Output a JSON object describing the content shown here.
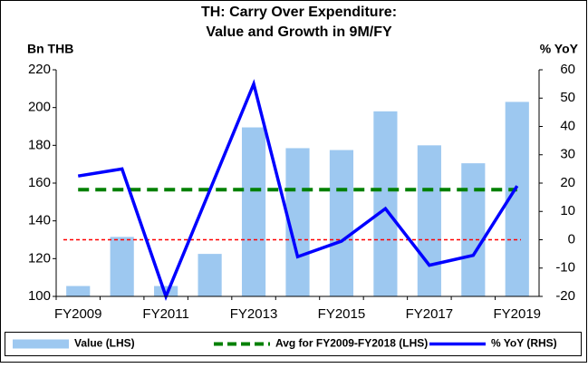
{
  "chart_data": {
    "type": "combo",
    "title": [
      "TH: Carry Over Expenditure:",
      "Value and Growth in 9M/FY"
    ],
    "y_label": "Bn THB",
    "y2_label": "% YoY",
    "categories": [
      "FY2009",
      null,
      "FY2011",
      null,
      "FY2013",
      null,
      "FY2015",
      null,
      "FY2017",
      null,
      "FY2019"
    ],
    "series": [
      {
        "name": "Value (LHS)",
        "type": "bar",
        "color": "#9dc8f0",
        "axis": "y",
        "values": [
          105.5,
          131.5,
          105.5,
          122.5,
          189.5,
          178.5,
          177.5,
          198,
          180,
          170.5,
          203
        ]
      },
      {
        "name": "Avg for FY2009-FY2018 (LHS)",
        "type": "line",
        "dashed": true,
        "color": "#008000",
        "axis": "y",
        "values": [
          156.5,
          156.5,
          156.5,
          156.5,
          156.5,
          156.5,
          156.5,
          156.5,
          156.5,
          156.5,
          156.5
        ]
      },
      {
        "name": "% YoY (RHS)",
        "type": "line",
        "dashed": false,
        "color": "#0000ff",
        "axis": "y2",
        "values": [
          22.5,
          25,
          -20,
          17.5,
          55,
          -6,
          -0.5,
          11,
          -9,
          -5.5,
          19
        ]
      }
    ],
    "ylim": [
      100,
      220
    ],
    "yticks": [
      100,
      120,
      140,
      160,
      180,
      200,
      220
    ],
    "y2lim": [
      -20,
      60
    ],
    "y2ticks": [
      -20,
      -10,
      0,
      10,
      20,
      30,
      40,
      50,
      60
    ],
    "zero_line": {
      "axis": "y2",
      "color": "#ff0000"
    },
    "legend": "bottom"
  }
}
